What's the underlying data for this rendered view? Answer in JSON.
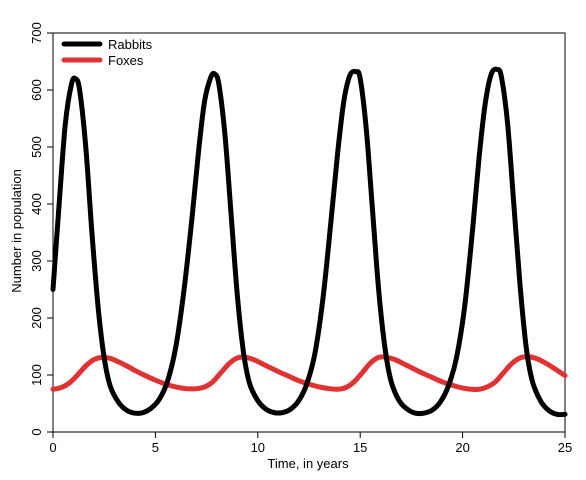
{
  "chart_data": {
    "type": "line",
    "xlabel": "Time, in years",
    "ylabel": "Number in population",
    "xlim": [
      0,
      25
    ],
    "ylim": [
      0,
      700
    ],
    "xticks": [
      0,
      5,
      10,
      15,
      20,
      25
    ],
    "yticks": [
      0,
      100,
      200,
      300,
      400,
      500,
      600,
      700
    ],
    "grid": false,
    "legend_position": "top-left",
    "series": [
      {
        "name": "Rabbits",
        "color": "#000000",
        "x": [
          0,
          0.3,
          0.6,
          0.9,
          1.1,
          1.3,
          1.6,
          1.9,
          2.2,
          2.5,
          2.8,
          3.2,
          3.6,
          4.0,
          4.4,
          4.8,
          5.2,
          5.6,
          6.0,
          6.4,
          6.8,
          7.1,
          7.4,
          7.7,
          7.9,
          8.1,
          8.4,
          8.7,
          9.0,
          9.3,
          9.6,
          10.0,
          10.4,
          10.8,
          11.2,
          11.6,
          12.0,
          12.4,
          12.8,
          13.2,
          13.6,
          13.9,
          14.2,
          14.5,
          14.8,
          15.0,
          15.3,
          15.6,
          15.9,
          16.2,
          16.5,
          16.9,
          17.3,
          17.7,
          18.1,
          18.5,
          18.9,
          19.3,
          19.7,
          20.1,
          20.5,
          20.8,
          21.1,
          21.4,
          21.7,
          21.9,
          22.2,
          22.5,
          22.8,
          23.1,
          23.4,
          23.8,
          24.2,
          24.6,
          25.0
        ],
        "y": [
          250,
          400,
          540,
          610,
          620,
          600,
          500,
          350,
          220,
          130,
          80,
          52,
          38,
          33,
          34,
          42,
          58,
          90,
          150,
          250,
          380,
          490,
          580,
          622,
          628,
          610,
          520,
          380,
          240,
          140,
          85,
          55,
          40,
          34,
          34,
          40,
          55,
          85,
          140,
          240,
          380,
          490,
          580,
          626,
          632,
          620,
          530,
          390,
          250,
          150,
          90,
          55,
          40,
          33,
          33,
          38,
          52,
          80,
          130,
          220,
          360,
          480,
          575,
          628,
          636,
          622,
          540,
          400,
          260,
          150,
          90,
          55,
          38,
          31,
          31
        ]
      },
      {
        "name": "Foxes",
        "color": "#e03232",
        "x": [
          0,
          0.4,
          0.8,
          1.2,
          1.6,
          2.0,
          2.4,
          2.8,
          3.2,
          3.6,
          4.0,
          4.5,
          5.0,
          5.5,
          6.0,
          6.5,
          7.0,
          7.4,
          7.8,
          8.2,
          8.6,
          9.0,
          9.4,
          9.8,
          10.2,
          10.6,
          11.0,
          11.5,
          12.0,
          12.5,
          13.0,
          13.5,
          13.9,
          14.3,
          14.7,
          15.1,
          15.5,
          15.9,
          16.3,
          16.7,
          17.1,
          17.5,
          18.0,
          18.5,
          19.0,
          19.5,
          20.0,
          20.4,
          20.8,
          21.2,
          21.6,
          22.0,
          22.4,
          22.8,
          23.2,
          23.6,
          24.0,
          24.5,
          25.0
        ],
        "y": [
          75,
          78,
          86,
          100,
          116,
          127,
          131,
          129,
          123,
          116,
          108,
          99,
          91,
          84,
          79,
          76,
          76,
          79,
          88,
          104,
          120,
          130,
          131,
          127,
          120,
          113,
          106,
          98,
          90,
          84,
          79,
          76,
          75,
          78,
          88,
          104,
          121,
          131,
          131,
          127,
          120,
          113,
          104,
          96,
          88,
          82,
          77,
          75,
          75,
          79,
          88,
          104,
          120,
          130,
          132,
          129,
          122,
          111,
          99
        ]
      }
    ]
  }
}
